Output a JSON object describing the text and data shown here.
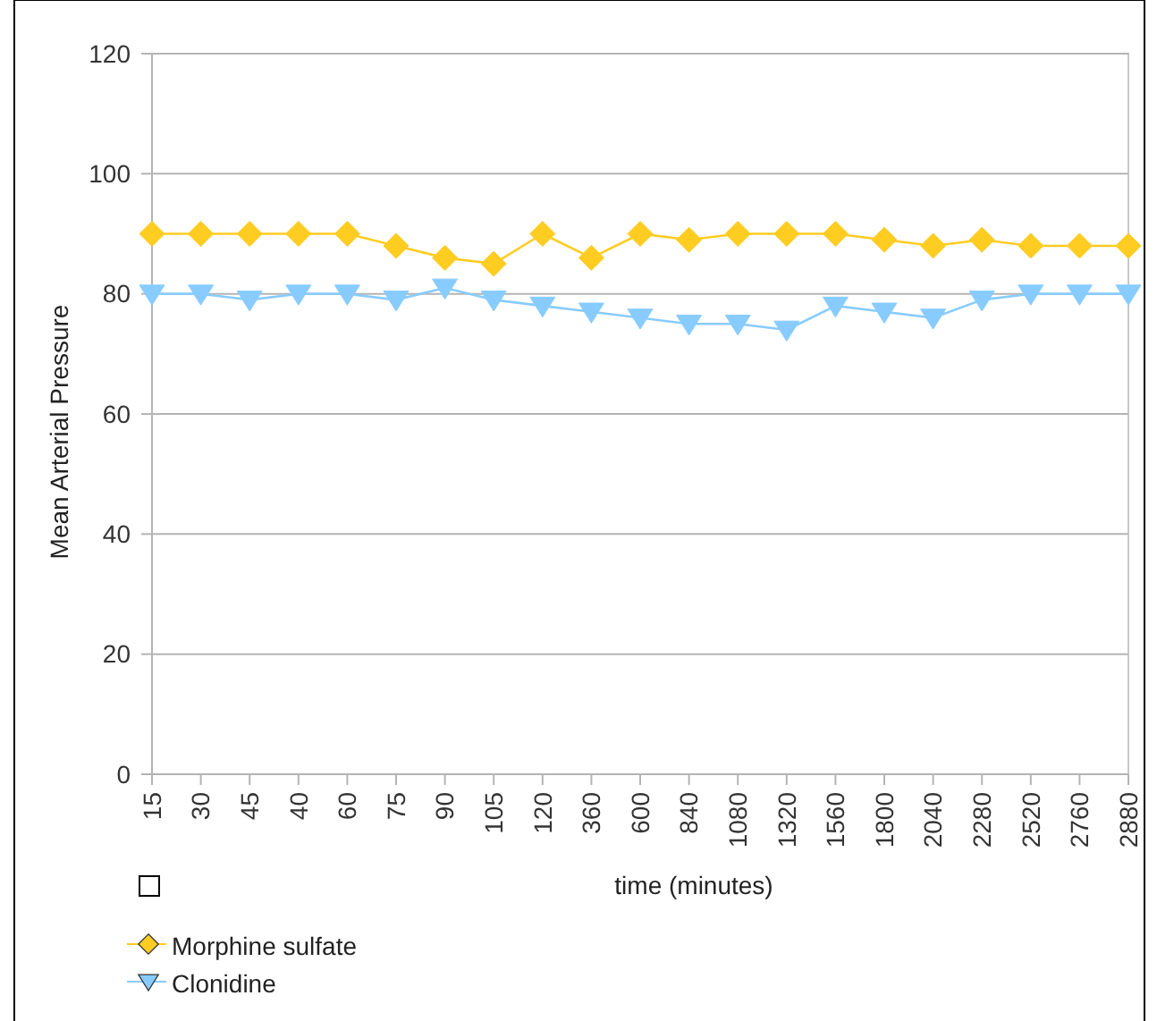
{
  "chart_data": {
    "type": "line",
    "xlabel": "time (minutes)",
    "ylabel": "Mean Arterial Pressure",
    "categories": [
      "15",
      "30",
      "45",
      "40",
      "60",
      "75",
      "90",
      "105",
      "120",
      "360",
      "600",
      "840",
      "1080",
      "1320",
      "1560",
      "1800",
      "2040",
      "2280",
      "2520",
      "2760",
      "2880"
    ],
    "series": [
      {
        "name": "Morphine sulfate",
        "color": "#ffcc22",
        "marker": "diamond",
        "values": [
          90,
          90,
          90,
          90,
          90,
          88,
          86,
          85,
          90,
          86,
          90,
          89,
          90,
          90,
          90,
          89,
          88,
          89,
          88,
          88,
          88
        ]
      },
      {
        "name": "Clonidine",
        "color": "#88ccff",
        "marker": "triangle",
        "values": [
          80,
          80,
          79,
          80,
          80,
          79,
          81,
          79,
          78,
          77,
          76,
          75,
          75,
          74,
          78,
          77,
          76,
          79,
          80,
          80,
          80
        ]
      }
    ],
    "ylim": [
      0,
      120
    ],
    "yticks": [
      0,
      20,
      40,
      60,
      80,
      100,
      120
    ],
    "grid": "y",
    "legend": "bottom left"
  }
}
